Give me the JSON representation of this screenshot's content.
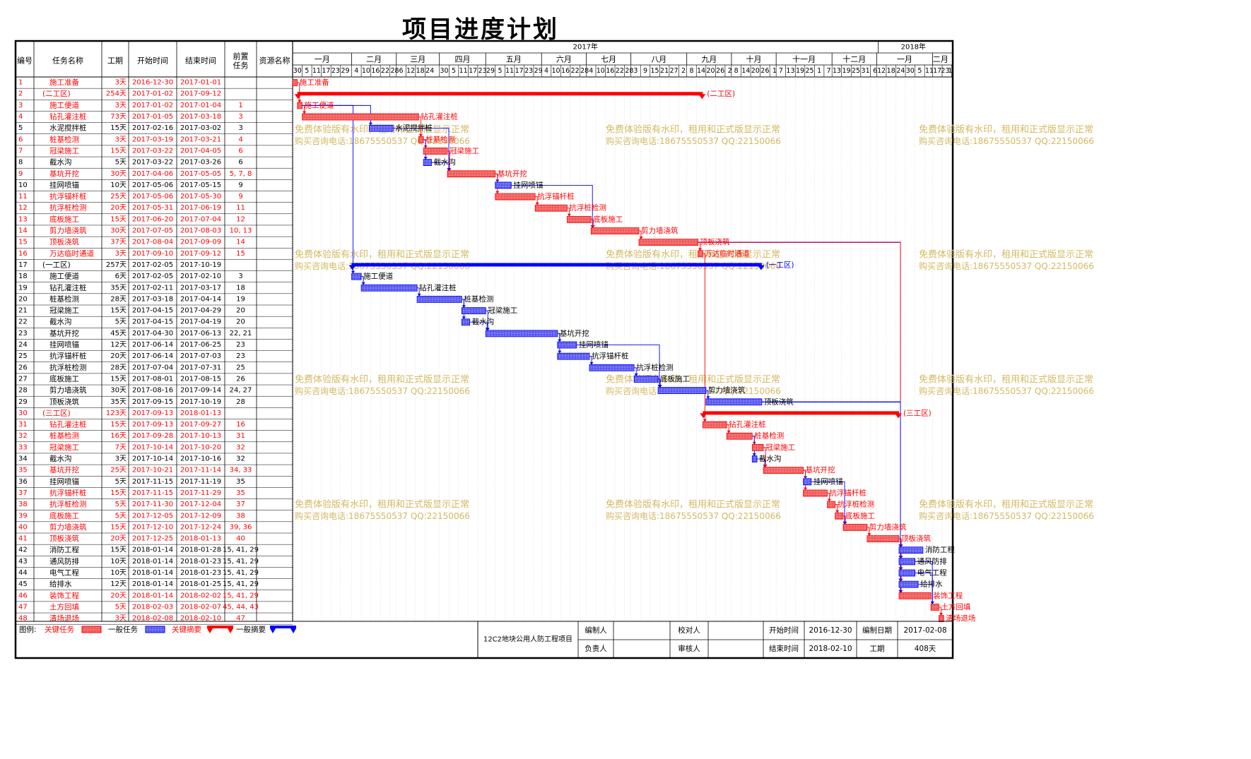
{
  "title": "项目进度计划",
  "table": {
    "headers": [
      "编号",
      "任务名称",
      "工期",
      "开始时间",
      "结束时间",
      "前置任务",
      "资源名称"
    ]
  },
  "timeline": {
    "years": [
      {
        "label": "2017年",
        "start": "2017-01-01"
      },
      {
        "label": "2018年",
        "start": "2018-01-01"
      }
    ],
    "months": [
      {
        "label": "一月",
        "start": "2016-12-30"
      },
      {
        "label": "二月",
        "start": "2017-02-05"
      },
      {
        "label": "三月",
        "start": "2017-03-05"
      },
      {
        "label": "四月",
        "start": "2017-04-01"
      },
      {
        "label": "五月",
        "start": "2017-04-30"
      },
      {
        "label": "六月",
        "start": "2017-06-04"
      },
      {
        "label": "七月",
        "start": "2017-07-02"
      },
      {
        "label": "八月",
        "start": "2017-07-30"
      },
      {
        "label": "九月",
        "start": "2017-09-03"
      },
      {
        "label": "十月",
        "start": "2017-10-01"
      },
      {
        "label": "十一月",
        "start": "2017-10-29"
      },
      {
        "label": "十二月",
        "start": "2017-12-03"
      },
      {
        "label": "一月",
        "start": "2017-12-31"
      },
      {
        "label": "二月",
        "start": "2018-02-04"
      }
    ],
    "days": [
      "30",
      "5",
      "11",
      "17",
      "23",
      "29",
      "4",
      "10",
      "16",
      "22",
      "28",
      "6",
      "12",
      "18",
      "24",
      "30",
      "5",
      "11",
      "17",
      "23",
      "29",
      "5",
      "11",
      "17",
      "23",
      "29",
      "4",
      "10",
      "16",
      "22",
      "28",
      "4",
      "10",
      "16",
      "22",
      "28",
      "3",
      "9",
      "15",
      "21",
      "27",
      "2",
      "8",
      "14",
      "20",
      "26",
      "2",
      "8",
      "14",
      "20",
      "26",
      "1",
      "7",
      "13",
      "19",
      "25",
      "1",
      "7",
      "13",
      "19",
      "25",
      "31",
      "6",
      "12",
      "18",
      "24",
      "30",
      "5",
      "11",
      "17",
      "23",
      "1"
    ],
    "start": "2016-12-30",
    "end": "2018-02-14"
  },
  "watermark": {
    "line1": "免费体验版有水印，租用和正式版显示正常",
    "line2": "购买咨询电话:18675550537 QQ:22150066"
  },
  "chart_data": {
    "type": "gantt",
    "title": "项目进度计划",
    "tasks": [
      {
        "id": "1",
        "name": "施工准备",
        "duration": "3天",
        "start": "2016-12-30",
        "end": "2017-01-01",
        "pred": "",
        "critical": true,
        "summary": false,
        "bar_label": "施工准备"
      },
      {
        "id": "2",
        "name": "(二工区)",
        "duration": "254天",
        "start": "2017-01-02",
        "end": "2017-09-12",
        "pred": "",
        "critical": true,
        "summary": true,
        "bar_label": "(二工区)"
      },
      {
        "id": "3",
        "name": "施工便道",
        "duration": "3天",
        "start": "2017-01-02",
        "end": "2017-01-04",
        "pred": "1",
        "critical": true,
        "summary": false,
        "bar_label": "施工便道"
      },
      {
        "id": "4",
        "name": "钻孔灌注桩",
        "duration": "73天",
        "start": "2017-01-05",
        "end": "2017-03-18",
        "pred": "3",
        "critical": true,
        "summary": false,
        "bar_label": "钻孔灌注桩"
      },
      {
        "id": "5",
        "name": "水泥搅拌桩",
        "duration": "15天",
        "start": "2017-02-16",
        "end": "2017-03-02",
        "pred": "3",
        "critical": false,
        "summary": false,
        "bar_label": "水泥搅拌桩"
      },
      {
        "id": "6",
        "name": "桩基检测",
        "duration": "3天",
        "start": "2017-03-19",
        "end": "2017-03-21",
        "pred": "4",
        "critical": true,
        "summary": false,
        "bar_label": "桩基检测"
      },
      {
        "id": "7",
        "name": "冠梁施工",
        "duration": "15天",
        "start": "2017-03-22",
        "end": "2017-04-05",
        "pred": "6",
        "critical": true,
        "summary": false,
        "bar_label": "冠梁施工"
      },
      {
        "id": "8",
        "name": "截水沟",
        "duration": "5天",
        "start": "2017-03-22",
        "end": "2017-03-26",
        "pred": "6",
        "critical": false,
        "summary": false,
        "bar_label": "截水沟"
      },
      {
        "id": "9",
        "name": "基坑开挖",
        "duration": "30天",
        "start": "2017-04-06",
        "end": "2017-05-05",
        "pred": "5, 7, 8",
        "critical": true,
        "summary": false,
        "bar_label": "基坑开挖"
      },
      {
        "id": "10",
        "name": "挂网喷锚",
        "duration": "10天",
        "start": "2017-05-06",
        "end": "2017-05-15",
        "pred": "9",
        "critical": false,
        "summary": false,
        "bar_label": "挂网喷锚"
      },
      {
        "id": "11",
        "name": "抗浮锚杆桩",
        "duration": "25天",
        "start": "2017-05-06",
        "end": "2017-05-30",
        "pred": "9",
        "critical": true,
        "summary": false,
        "bar_label": "抗浮锚杆桩"
      },
      {
        "id": "12",
        "name": "抗浮桩检测",
        "duration": "20天",
        "start": "2017-05-31",
        "end": "2017-06-19",
        "pred": "11",
        "critical": true,
        "summary": false,
        "bar_label": "抗浮桩检测"
      },
      {
        "id": "13",
        "name": "底板施工",
        "duration": "15天",
        "start": "2017-06-20",
        "end": "2017-07-04",
        "pred": "12",
        "critical": true,
        "summary": false,
        "bar_label": "底板施工"
      },
      {
        "id": "14",
        "name": "剪力墙浇筑",
        "duration": "30天",
        "start": "2017-07-05",
        "end": "2017-08-03",
        "pred": "10, 13",
        "critical": true,
        "summary": false,
        "bar_label": "剪力墙浇筑"
      },
      {
        "id": "15",
        "name": "顶板浇筑",
        "duration": "37天",
        "start": "2017-08-04",
        "end": "2017-09-09",
        "pred": "14",
        "critical": true,
        "summary": false,
        "bar_label": "顶板浇筑"
      },
      {
        "id": "16",
        "name": "万达临时通道",
        "duration": "3天",
        "start": "2017-09-10",
        "end": "2017-09-12",
        "pred": "15",
        "critical": true,
        "summary": false,
        "bar_label": "万达临时通道"
      },
      {
        "id": "17",
        "name": "(一工区)",
        "duration": "257天",
        "start": "2017-02-05",
        "end": "2017-10-19",
        "pred": "",
        "critical": false,
        "summary": true,
        "bar_label": "(一工区)"
      },
      {
        "id": "18",
        "name": "施工便道",
        "duration": "6天",
        "start": "2017-02-05",
        "end": "2017-02-10",
        "pred": "3",
        "critical": false,
        "summary": false,
        "bar_label": "施工便道"
      },
      {
        "id": "19",
        "name": "钻孔灌注桩",
        "duration": "35天",
        "start": "2017-02-11",
        "end": "2017-03-17",
        "pred": "18",
        "critical": false,
        "summary": false,
        "bar_label": "钻孔灌注桩"
      },
      {
        "id": "20",
        "name": "桩基检测",
        "duration": "28天",
        "start": "2017-03-18",
        "end": "2017-04-14",
        "pred": "19",
        "critical": false,
        "summary": false,
        "bar_label": "桩基检测"
      },
      {
        "id": "21",
        "name": "冠梁施工",
        "duration": "15天",
        "start": "2017-04-15",
        "end": "2017-04-29",
        "pred": "20",
        "critical": false,
        "summary": false,
        "bar_label": "冠梁施工"
      },
      {
        "id": "22",
        "name": "截水沟",
        "duration": "5天",
        "start": "2017-04-15",
        "end": "2017-04-19",
        "pred": "20",
        "critical": false,
        "summary": false,
        "bar_label": "截水沟"
      },
      {
        "id": "23",
        "name": "基坑开挖",
        "duration": "45天",
        "start": "2017-04-30",
        "end": "2017-06-13",
        "pred": "22, 21",
        "critical": false,
        "summary": false,
        "bar_label": "基坑开挖"
      },
      {
        "id": "24",
        "name": "挂网喷锚",
        "duration": "12天",
        "start": "2017-06-14",
        "end": "2017-06-25",
        "pred": "23",
        "critical": false,
        "summary": false,
        "bar_label": "挂网喷锚"
      },
      {
        "id": "25",
        "name": "抗浮锚杆桩",
        "duration": "20天",
        "start": "2017-06-14",
        "end": "2017-07-03",
        "pred": "23",
        "critical": false,
        "summary": false,
        "bar_label": "抗浮锚杆桩"
      },
      {
        "id": "26",
        "name": "抗浮桩检测",
        "duration": "28天",
        "start": "2017-07-04",
        "end": "2017-07-31",
        "pred": "25",
        "critical": false,
        "summary": false,
        "bar_label": "抗浮桩检测"
      },
      {
        "id": "27",
        "name": "底板施工",
        "duration": "15天",
        "start": "2017-08-01",
        "end": "2017-08-15",
        "pred": "26",
        "critical": false,
        "summary": false,
        "bar_label": "底板施工"
      },
      {
        "id": "28",
        "name": "剪力墙浇筑",
        "duration": "30天",
        "start": "2017-08-16",
        "end": "2017-09-14",
        "pred": "24, 27",
        "critical": false,
        "summary": false,
        "bar_label": "剪力墙浇筑"
      },
      {
        "id": "29",
        "name": "顶板浇筑",
        "duration": "35天",
        "start": "2017-09-15",
        "end": "2017-10-19",
        "pred": "28",
        "critical": false,
        "summary": false,
        "bar_label": "顶板浇筑"
      },
      {
        "id": "30",
        "name": "(三工区)",
        "duration": "123天",
        "start": "2017-09-13",
        "end": "2018-01-13",
        "pred": "",
        "critical": true,
        "summary": true,
        "bar_label": "(三工区)"
      },
      {
        "id": "31",
        "name": "钻孔灌注桩",
        "duration": "15天",
        "start": "2017-09-13",
        "end": "2017-09-27",
        "pred": "16",
        "critical": true,
        "summary": false,
        "bar_label": "钻孔灌注桩"
      },
      {
        "id": "32",
        "name": "桩基检测",
        "duration": "16天",
        "start": "2017-09-28",
        "end": "2017-10-13",
        "pred": "31",
        "critical": true,
        "summary": false,
        "bar_label": "桩基检测"
      },
      {
        "id": "33",
        "name": "冠梁施工",
        "duration": "7天",
        "start": "2017-10-14",
        "end": "2017-10-20",
        "pred": "32",
        "critical": true,
        "summary": false,
        "bar_label": "冠梁施工"
      },
      {
        "id": "34",
        "name": "截水沟",
        "duration": "3天",
        "start": "2017-10-14",
        "end": "2017-10-16",
        "pred": "32",
        "critical": false,
        "summary": false,
        "bar_label": "截水沟"
      },
      {
        "id": "35",
        "name": "基坑开挖",
        "duration": "25天",
        "start": "2017-10-21",
        "end": "2017-11-14",
        "pred": "34, 33",
        "critical": true,
        "summary": false,
        "bar_label": "基坑开挖"
      },
      {
        "id": "36",
        "name": "挂网喷锚",
        "duration": "5天",
        "start": "2017-11-15",
        "end": "2017-11-19",
        "pred": "35",
        "critical": false,
        "summary": false,
        "bar_label": "挂网喷锚"
      },
      {
        "id": "37",
        "name": "抗浮锚杆桩",
        "duration": "15天",
        "start": "2017-11-15",
        "end": "2017-11-29",
        "pred": "35",
        "critical": true,
        "summary": false,
        "bar_label": "抗浮锚杆桩"
      },
      {
        "id": "38",
        "name": "抗浮桩检测",
        "duration": "5天",
        "start": "2017-11-30",
        "end": "2017-12-04",
        "pred": "37",
        "critical": true,
        "summary": false,
        "bar_label": "抗浮桩检测"
      },
      {
        "id": "39",
        "name": "底板施工",
        "duration": "5天",
        "start": "2017-12-05",
        "end": "2017-12-09",
        "pred": "38",
        "critical": true,
        "summary": false,
        "bar_label": "底板施工"
      },
      {
        "id": "40",
        "name": "剪力墙浇筑",
        "duration": "15天",
        "start": "2017-12-10",
        "end": "2017-12-24",
        "pred": "39, 36",
        "critical": true,
        "summary": false,
        "bar_label": "剪力墙浇筑"
      },
      {
        "id": "41",
        "name": "顶板浇筑",
        "duration": "20天",
        "start": "2017-12-25",
        "end": "2018-01-13",
        "pred": "40",
        "critical": true,
        "summary": false,
        "bar_label": "顶板浇筑"
      },
      {
        "id": "42",
        "name": "消防工程",
        "duration": "15天",
        "start": "2018-01-14",
        "end": "2018-01-28",
        "pred": "15, 41, 29",
        "critical": false,
        "summary": false,
        "bar_label": "消防工程"
      },
      {
        "id": "43",
        "name": "通风防排",
        "duration": "10天",
        "start": "2018-01-14",
        "end": "2018-01-23",
        "pred": "15, 41, 29",
        "critical": false,
        "summary": false,
        "bar_label": "通风防排"
      },
      {
        "id": "44",
        "name": "电气工程",
        "duration": "10天",
        "start": "2018-01-14",
        "end": "2018-01-23",
        "pred": "15, 41, 29",
        "critical": false,
        "summary": false,
        "bar_label": "电气工程"
      },
      {
        "id": "45",
        "name": "给排水",
        "duration": "12天",
        "start": "2018-01-14",
        "end": "2018-01-25",
        "pred": "15, 41, 29",
        "critical": false,
        "summary": false,
        "bar_label": "给排水"
      },
      {
        "id": "46",
        "name": "装饰工程",
        "duration": "20天",
        "start": "2018-01-14",
        "end": "2018-02-02",
        "pred": "15, 41, 29",
        "critical": true,
        "summary": false,
        "bar_label": "装饰工程"
      },
      {
        "id": "47",
        "name": "土方回填",
        "duration": "5天",
        "start": "2018-02-03",
        "end": "2018-02-07",
        "pred": "45, 44, 43",
        "critical": true,
        "summary": false,
        "bar_label": "土方回填"
      },
      {
        "id": "48",
        "name": "清场退场",
        "duration": "3天",
        "start": "2018-02-08",
        "end": "2018-02-10",
        "pred": "47",
        "critical": true,
        "summary": false,
        "bar_label": "清场退场"
      }
    ]
  },
  "legend": {
    "label": "图例:",
    "critical_task": "关键任务",
    "normal_task": "一般任务",
    "critical_summary": "关键摘要",
    "normal_summary": "一般摘要"
  },
  "footer": {
    "project_name": "12C2地块公用人防工程项目",
    "compiler_label": "编制人",
    "compiler_value": "",
    "checker_label": "校对人",
    "checker_value": "",
    "start_label": "开始时间",
    "start_value": "2016-12-30",
    "compile_date_label": "编制日期",
    "compile_date_value": "2017-02-08",
    "responsible_label": "负责人",
    "responsible_value": "",
    "reviewer_label": "审核人",
    "reviewer_value": "",
    "end_label": "结束时间",
    "end_value": "2018-02-10",
    "duration_label": "工期",
    "duration_value": "408天"
  },
  "colors": {
    "critical": "#ff0000",
    "critical_fill": "#ef7a7a",
    "normal": "#0000ff",
    "normal_fill": "#7a7aef",
    "watermark": "#d4b860"
  }
}
